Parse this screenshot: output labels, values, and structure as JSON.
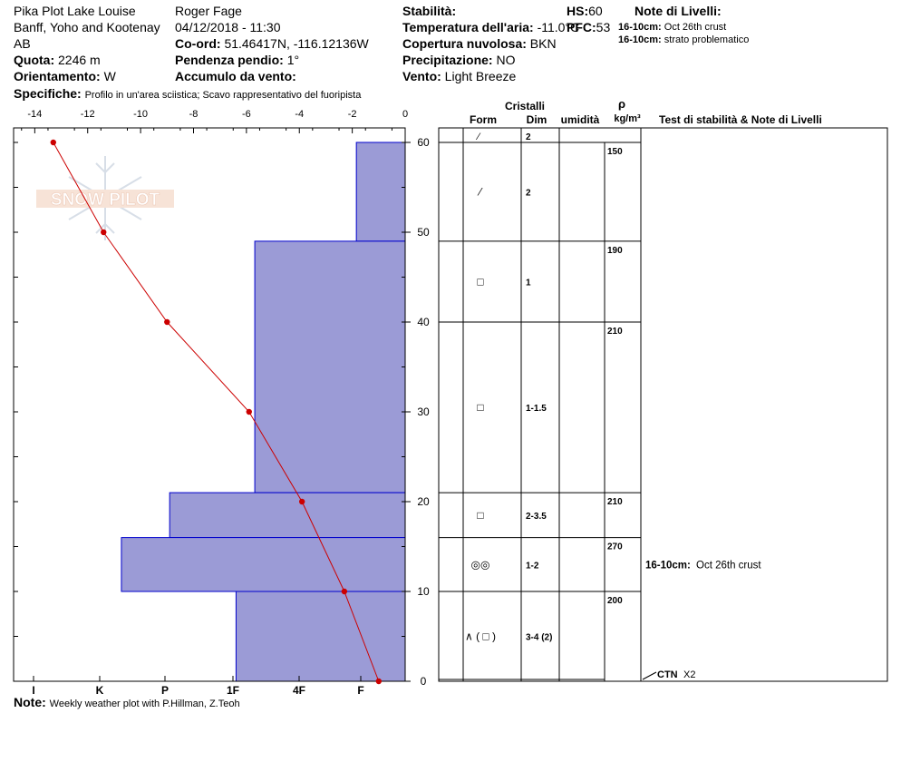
{
  "header": {
    "location": "Pika Plot Lake Louise",
    "region": "Banff, Yoho and Kootenay",
    "province": "AB",
    "observer": "Roger Fage",
    "datetime": "04/12/2018 - 11:30",
    "quota_label": "Quota:",
    "quota_value": "2246 m",
    "orient_label": "Orientamento:",
    "orient_value": "W",
    "coord_label": "Co-ord:",
    "coord_value": "51.46417N, -116.12136W",
    "pendenza_label": "Pendenza pendio:",
    "pendenza_value": "1°",
    "accumulo_label": "Accumulo da vento:",
    "accumulo_value": "",
    "specifiche_label": "Specifiche:",
    "specifiche_value": "Profilo in un'area sciistica; Scavo rappresentativo del fuoripista",
    "stabilita_label": "Stabilità:",
    "stabilita_value": "",
    "temp_label": "Temperatura dell'aria:",
    "temp_value": "-11.0°C",
    "copertura_label": "Copertura nuvolosa:",
    "copertura_value": "BKN",
    "precip_label": "Precipitazione:",
    "precip_value": "NO",
    "vento_label": "Vento:",
    "vento_value": "Light Breeze",
    "hs_label": "HS:",
    "hs_value": "60",
    "pfc_label": "PFC:",
    "pfc_value": "53",
    "note_livelli_title": "Note di Livelli:",
    "note_livelli": [
      {
        "range": "16-10cm:",
        "text": "Oct 26th crust"
      },
      {
        "range": "16-10cm:",
        "text": "strato problematico"
      }
    ]
  },
  "watermark": "SNOW PILOT",
  "footer": {
    "note_label": "Note:",
    "note_value": "Weekly weather plot with P.Hillman, Z.Teoh"
  },
  "table": {
    "cristalli": "Cristalli",
    "form": "Form",
    "dim": "Dim",
    "umidita": "umidità",
    "rho": "ρ",
    "rho_unit": "kg/m³",
    "test_header": "Test di stabilità & Note di Livelli",
    "layers": [
      {
        "top": 60,
        "bottom": 49,
        "form": "⁄",
        "dim": "2",
        "density": "150"
      },
      {
        "top": 49,
        "bottom": 40,
        "form": "□",
        "dim": "1",
        "density": "190"
      },
      {
        "top": 40,
        "bottom": 21,
        "form": "□",
        "dim": "1-1.5",
        "density": "210"
      },
      {
        "top": 21,
        "bottom": 16,
        "form": "□",
        "dim": "2-3.5",
        "density": "210"
      },
      {
        "top": 16,
        "bottom": 10,
        "form": "◎◎",
        "dim": "1-2",
        "density": "270"
      },
      {
        "top": 10,
        "bottom": 0,
        "form": "∧ ( □ )",
        "dim": "3-4 (2)",
        "density": "200"
      }
    ],
    "surface_form": "⁄",
    "surface_dim": "2",
    "layer_note_range": "16-10cm:",
    "layer_note_text": "Oct 26th crust",
    "test_label": "CTN",
    "test_value": "X2"
  },
  "chart_data": {
    "type": "bar",
    "description_axes": "snow profile: hardness bars and temperature line vs height",
    "y_label_units": "cm",
    "ylim": [
      0,
      60
    ],
    "y_ticks": [
      0,
      10,
      20,
      30,
      40,
      50,
      60
    ],
    "temp_axis": {
      "ticks": [
        -14,
        -12,
        -10,
        -8,
        -6,
        -4,
        -2,
        0
      ],
      "range": [
        -14.8,
        0
      ]
    },
    "hardness_axis": {
      "ticks": [
        "I",
        "K",
        "P",
        "1F",
        "4F",
        "F"
      ]
    },
    "hardness_layers": [
      {
        "top": 60,
        "bottom": 49,
        "hardness": "F",
        "index": 0.86
      },
      {
        "top": 49,
        "bottom": 21,
        "hardness": "4F",
        "index": 2.65
      },
      {
        "top": 21,
        "bottom": 16,
        "hardness": "1F",
        "index": 4.15
      },
      {
        "top": 16,
        "bottom": 10,
        "hardness": "P",
        "index": 5.0
      },
      {
        "top": 10,
        "bottom": 0,
        "hardness": "4F",
        "index": 2.98
      }
    ],
    "temperature_profile": [
      {
        "height": 60,
        "temp": -13.3
      },
      {
        "height": 50,
        "temp": -11.4
      },
      {
        "height": 40,
        "temp": -9.0
      },
      {
        "height": 30,
        "temp": -5.9
      },
      {
        "height": 20,
        "temp": -3.9
      },
      {
        "height": 10,
        "temp": -2.3
      },
      {
        "height": 0,
        "temp": -1.0
      }
    ],
    "colors": {
      "bars": "#9b9bd6",
      "bar_edge": "#0000cc",
      "temp_line": "#cc0000"
    }
  }
}
